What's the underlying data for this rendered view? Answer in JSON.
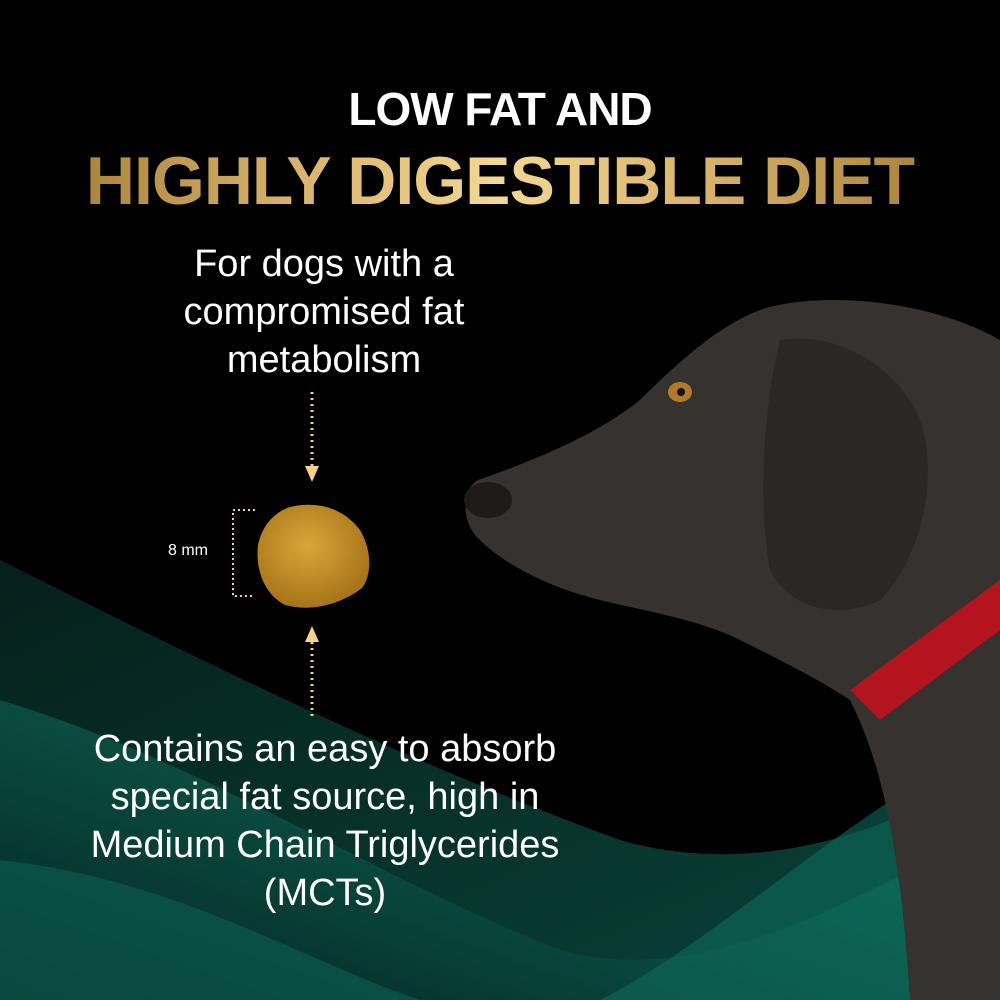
{
  "headline": {
    "line1": "LOW FAT AND",
    "line2": "HIGHLY DIGESTIBLE DIET"
  },
  "callout_top": "For dogs with a compromised fat metabolism",
  "callout_bottom": "Contains an easy to absorb special fat source, high in Medium Chain Triglycerides (MCTs)",
  "kibble": {
    "size_label": "8 mm"
  },
  "colors": {
    "background": "#000000",
    "gold": "#e6c77f",
    "accent_teal": "#0f6e5e",
    "arrow": "#f6d089",
    "collar": "#b3141d"
  }
}
